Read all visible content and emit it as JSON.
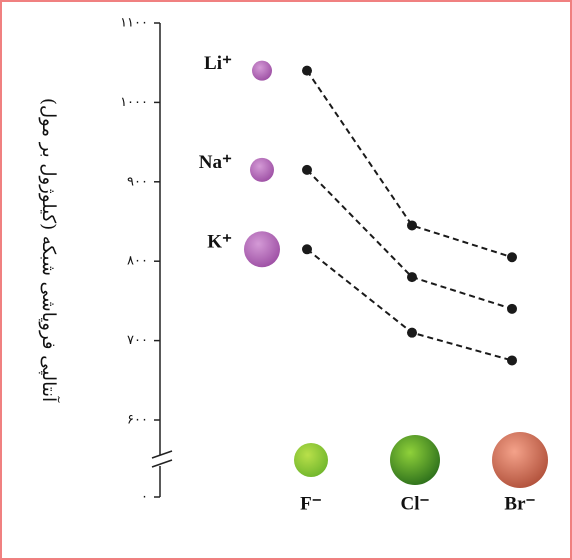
{
  "chart_data": {
    "type": "line",
    "y_label": "آنتالپی فروپاشی شبکه (کیلوژول بر مول)",
    "categories": [
      "F⁻",
      "Cl⁻",
      "Br⁻"
    ],
    "series": [
      {
        "name": "Li⁺",
        "color": "#1a1a1a",
        "values": [
          1040,
          845,
          805
        ]
      },
      {
        "name": "Na⁺",
        "color": "#1a1a1a",
        "values": [
          915,
          780,
          740
        ]
      },
      {
        "name": "K⁺",
        "color": "#1a1a1a",
        "values": [
          815,
          710,
          675
        ]
      }
    ],
    "ylim": [
      0,
      1100
    ],
    "axis_break": [
      0,
      600
    ],
    "yticks": [
      {
        "value": 0,
        "label": "۰"
      },
      {
        "value": 600,
        "label": "۶۰۰"
      },
      {
        "value": 700,
        "label": "۷۰۰"
      },
      {
        "value": 800,
        "label": "۸۰۰"
      },
      {
        "value": 900,
        "label": "۹۰۰"
      },
      {
        "value": 1000,
        "label": "۱۰۰۰"
      },
      {
        "value": 1100,
        "label": "۱۱۰۰"
      }
    ]
  }
}
